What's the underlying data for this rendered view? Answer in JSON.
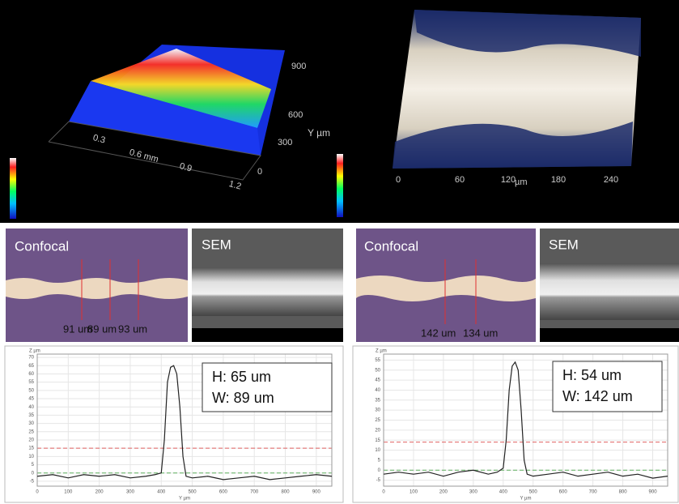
{
  "top_left": {
    "y_axis": "Y µm",
    "y_ticks": [
      "900",
      "600",
      "300",
      "0"
    ],
    "x_ticks": [
      "0.3",
      "0.6 mm",
      "0.9",
      "1.2"
    ]
  },
  "top_right": {
    "x_ticks": [
      "0",
      "60",
      "120",
      "180",
      "240"
    ],
    "x_axis": "µm"
  },
  "panels": [
    {
      "confocal": "Confocal",
      "sem": "SEM",
      "widths": [
        "91 um",
        "89 um",
        "93 um"
      ],
      "height": "H:  65 um",
      "width": "W: 89 um",
      "profile": {
        "type": "line",
        "x_axis": "Y µm",
        "y_axis": "Z µm",
        "x": [
          0,
          50,
          100,
          150,
          200,
          250,
          300,
          350,
          380,
          400,
          410,
          420,
          430,
          440,
          450,
          460,
          470,
          480,
          500,
          550,
          600,
          650,
          700,
          750,
          800,
          850,
          900,
          950
        ],
        "values": [
          -2,
          -1,
          -3,
          -1,
          -2,
          -1,
          -3,
          -2,
          -1,
          0,
          20,
          55,
          64,
          65,
          60,
          40,
          10,
          -2,
          -3,
          -2,
          -4,
          -3,
          -2,
          -4,
          -3,
          -2,
          -1,
          -2
        ],
        "xlim": [
          0,
          950
        ],
        "ylim": [
          -8,
          72
        ],
        "xticks": [
          0,
          100,
          200,
          300,
          400,
          500,
          600,
          700,
          800,
          900
        ],
        "yticks": [
          -5,
          0,
          5,
          10,
          15,
          20,
          25,
          30,
          35,
          40,
          45,
          50,
          55,
          60,
          65,
          70
        ],
        "red_line": 15,
        "green_line": 0
      }
    },
    {
      "confocal": "Confocal",
      "sem": "SEM",
      "widths": [
        "142 um",
        "134 um"
      ],
      "height": "H:   54 um",
      "width": "W: 142 um",
      "profile": {
        "type": "line",
        "x_axis": "Y µm",
        "y_axis": "Z µm",
        "x": [
          0,
          50,
          100,
          150,
          200,
          250,
          300,
          350,
          380,
          400,
          410,
          420,
          430,
          440,
          450,
          460,
          470,
          480,
          500,
          550,
          600,
          650,
          700,
          750,
          800,
          850,
          900,
          950
        ],
        "values": [
          -2,
          -1,
          -2,
          -1,
          -3,
          -1,
          0,
          -2,
          -1,
          1,
          15,
          40,
          52,
          54,
          50,
          30,
          5,
          -2,
          -3,
          -2,
          -1,
          -3,
          -2,
          -1,
          -3,
          -2,
          -4,
          -3
        ],
        "xlim": [
          0,
          950
        ],
        "ylim": [
          -8,
          58
        ],
        "xticks": [
          0,
          100,
          200,
          300,
          400,
          500,
          600,
          700,
          800,
          900
        ],
        "yticks": [
          -5,
          0,
          5,
          10,
          15,
          20,
          25,
          30,
          35,
          40,
          45,
          50,
          55
        ],
        "red_line": 14,
        "green_line": 0
      }
    }
  ]
}
